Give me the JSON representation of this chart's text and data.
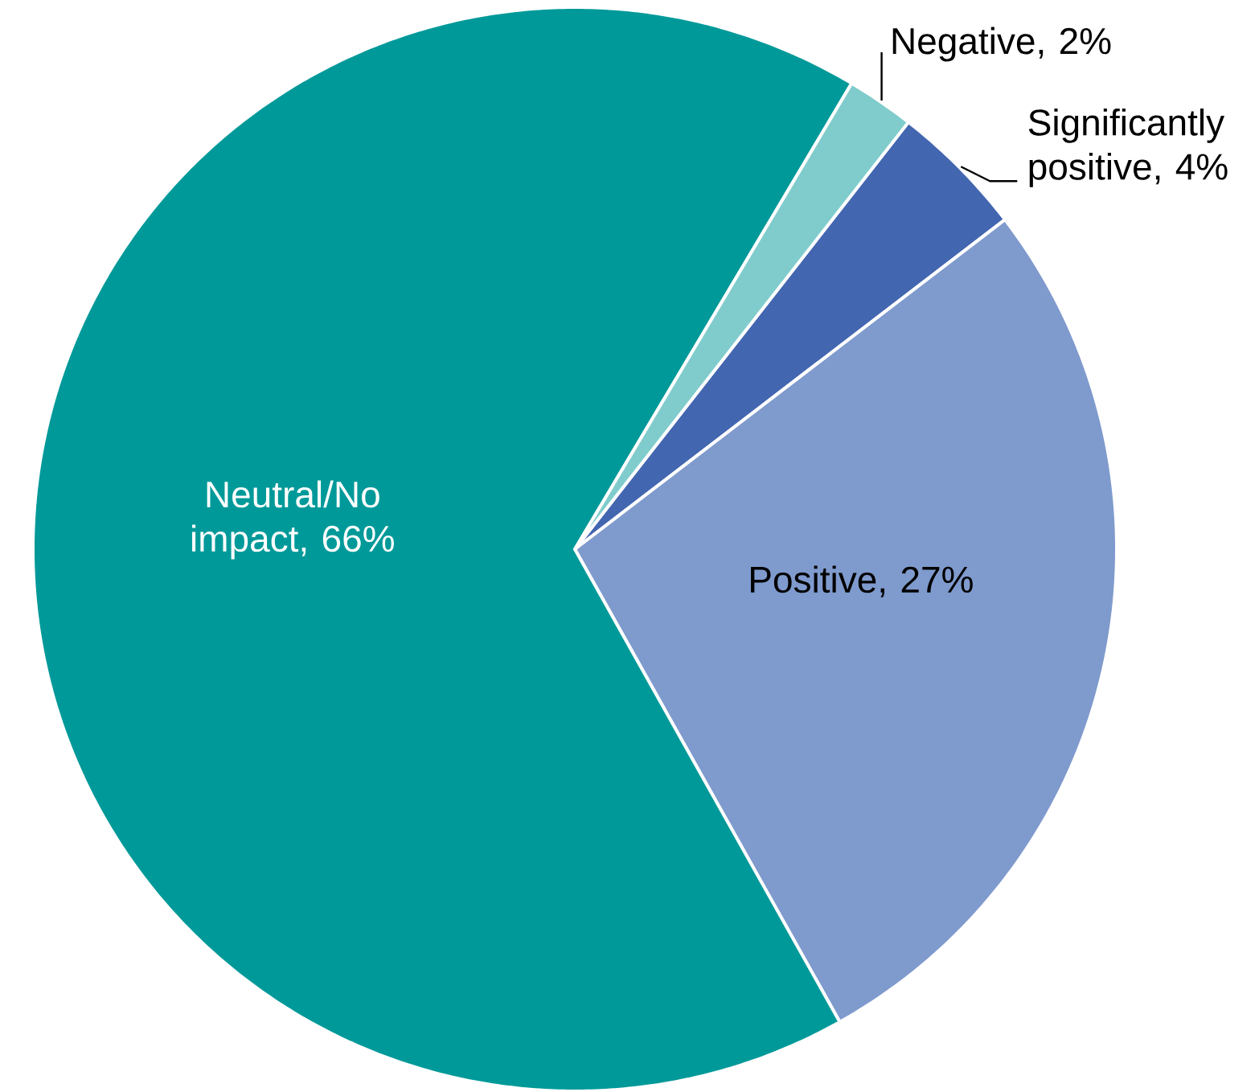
{
  "chart_data": {
    "type": "pie",
    "categories": [
      "Significantly positive, 4%",
      "Positive, 27%",
      "Neutral/No impact, 66%",
      "Negative, 2%"
    ],
    "values": [
      4,
      27,
      66,
      2
    ],
    "colors": [
      "#4366b0",
      "#7f9acd",
      "#009999",
      "#80cccc"
    ]
  }
}
